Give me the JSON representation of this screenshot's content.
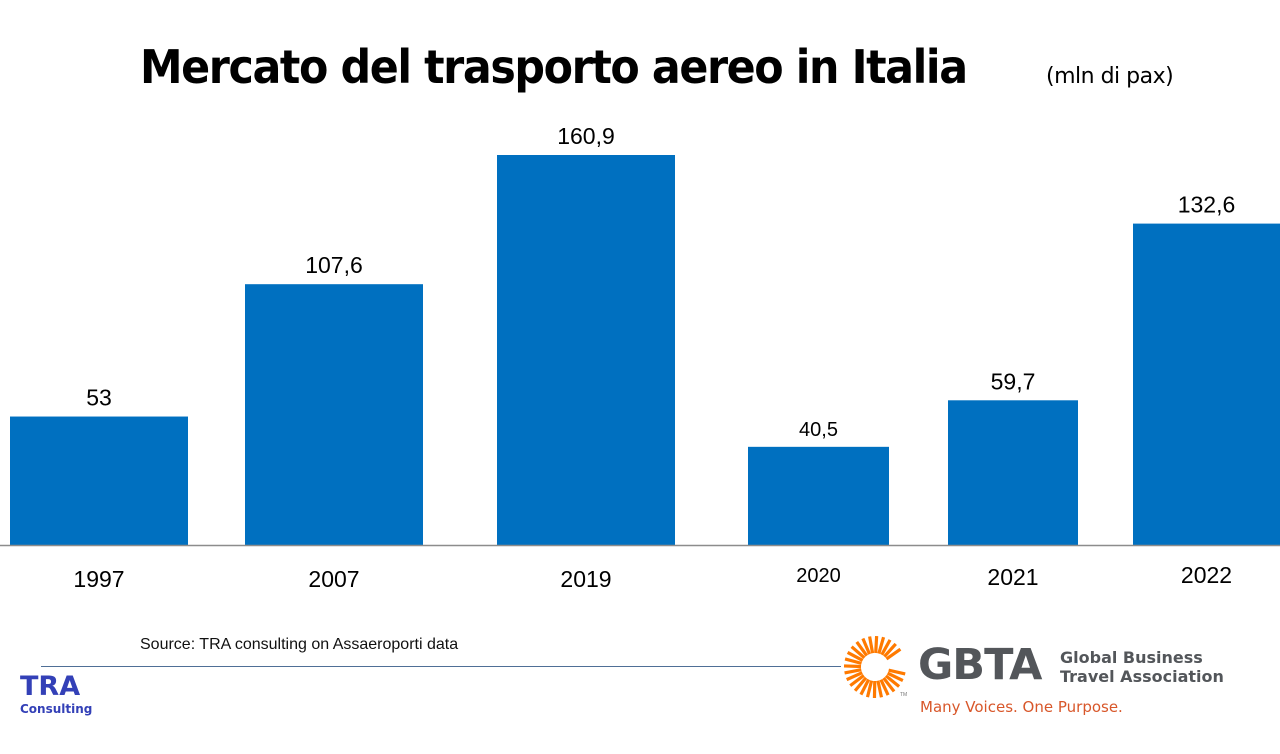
{
  "header": {
    "title": "Mercato del trasporto aereo in Italia",
    "unit": "(mln di pax)"
  },
  "chart_data": {
    "type": "bar",
    "title": "Mercato del trasporto aereo in Italia",
    "subtitle": "(mln di pax)",
    "xlabel": "",
    "ylabel": "mln di pax",
    "categories": [
      "1997",
      "2007",
      "2019",
      "2020",
      "2021",
      "2022"
    ],
    "values": [
      53,
      107.6,
      160.9,
      40.5,
      59.7,
      132.6
    ],
    "value_labels": [
      "53",
      "107,6",
      "160,9",
      "40,5",
      "59,7",
      "132,6"
    ],
    "ylim": [
      0,
      160.9
    ],
    "grid": false,
    "legend": "none",
    "bar_color": "#0070c0"
  },
  "footer": {
    "source": "Source: TRA consulting on Assaeroporti data",
    "tra_logo": {
      "line1": "TRA",
      "line2": "Consulting"
    },
    "gbta_logo": {
      "wordmark": "GBTA",
      "name_line1": "Global Business",
      "name_line2": "Travel Association",
      "tagline": "Many Voices. One Purpose.",
      "tm": "TM",
      "icon": "sunburst-icon",
      "mark_color": "#ff7a00",
      "text_color": "#53565a",
      "tagline_color": "#d8572a"
    }
  }
}
